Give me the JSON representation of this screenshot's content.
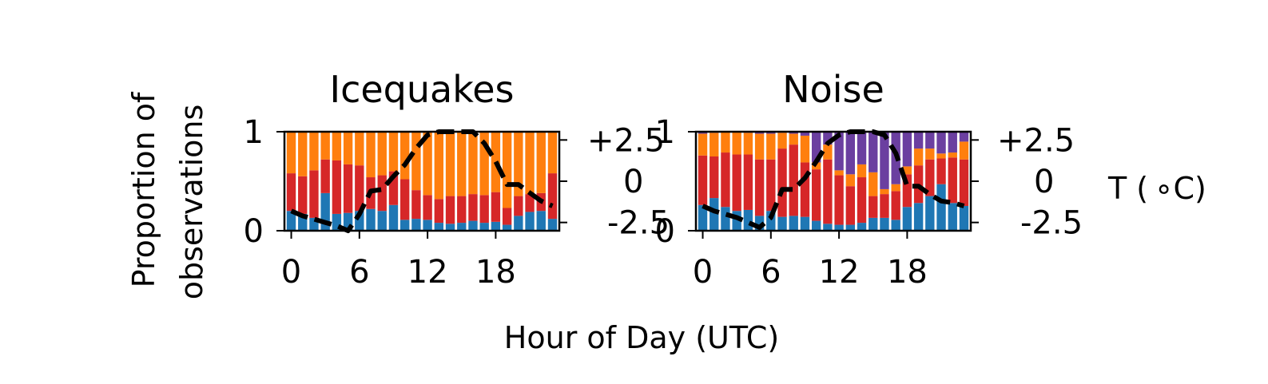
{
  "figure": {
    "ylabel_lines": [
      "Proportion of",
      "observations"
    ],
    "xlabel": "Hour of Day (UTC)",
    "temp_label": "T ($^\\circ$C)",
    "temp_label_display": "T ( ∘C)"
  },
  "colors": {
    "blue": "#1f77b4",
    "red": "#d62728",
    "orange": "#ff7f0e",
    "purple": "#6b3fa0",
    "temperature": "#000000"
  },
  "chart_data": [
    {
      "type": "bar",
      "stacked": true,
      "title": "Icequakes",
      "x": [
        0,
        1,
        2,
        3,
        4,
        5,
        6,
        7,
        8,
        9,
        10,
        11,
        12,
        13,
        14,
        15,
        16,
        17,
        18,
        19,
        20,
        21,
        22,
        23
      ],
      "x_ticks": [
        "0",
        "6",
        "12",
        "18"
      ],
      "y_ticks": [
        "0",
        "1"
      ],
      "ylim": [
        0,
        1
      ],
      "series": [
        {
          "color_key": "blue",
          "values": [
            0.2,
            0.17,
            0.13,
            0.38,
            0.17,
            0.18,
            0.2,
            0.22,
            0.2,
            0.26,
            0.11,
            0.12,
            0.11,
            0.08,
            0.07,
            0.08,
            0.1,
            0.08,
            0.09,
            0.06,
            0.15,
            0.19,
            0.2,
            0.12
          ]
        },
        {
          "color_key": "red",
          "values": [
            0.38,
            0.38,
            0.48,
            0.34,
            0.54,
            0.49,
            0.46,
            0.32,
            0.36,
            0.34,
            0.41,
            0.29,
            0.25,
            0.24,
            0.28,
            0.27,
            0.27,
            0.28,
            0.3,
            0.17,
            0.2,
            0.18,
            0.18,
            0.46
          ]
        },
        {
          "color_key": "orange",
          "values": [
            0.42,
            0.45,
            0.39,
            0.28,
            0.29,
            0.33,
            0.34,
            0.46,
            0.44,
            0.4,
            0.48,
            0.59,
            0.64,
            0.68,
            0.65,
            0.65,
            0.63,
            0.64,
            0.61,
            0.77,
            0.65,
            0.63,
            0.62,
            0.42
          ]
        }
      ],
      "temperature": {
        "ylim": [
          -3.0,
          3.0
        ],
        "y_ticks": [
          "+2.5",
          "0",
          "-2.5"
        ],
        "y_tick_values": [
          2.5,
          0,
          -2.5
        ],
        "x": [
          0,
          1,
          2,
          3,
          4,
          5,
          6,
          7,
          8,
          9,
          10,
          11,
          12,
          13,
          14,
          15,
          16,
          17,
          18,
          19,
          20,
          21,
          22,
          23
        ],
        "values": [
          -1.8,
          -2.1,
          -2.3,
          -2.5,
          -2.7,
          -3.0,
          -2.0,
          -0.6,
          -0.5,
          0.3,
          1.0,
          2.0,
          2.8,
          3.0,
          3.0,
          3.0,
          3.0,
          2.3,
          1.2,
          -0.2,
          -0.2,
          -0.7,
          -1.2,
          -1.5
        ],
        "linestyle": "dashed"
      }
    },
    {
      "type": "bar",
      "stacked": true,
      "title": "Noise",
      "x": [
        0,
        1,
        2,
        3,
        4,
        5,
        6,
        7,
        8,
        9,
        10,
        11,
        12,
        13,
        14,
        15,
        16,
        17,
        18,
        19,
        20,
        21,
        22,
        23
      ],
      "x_ticks": [
        "0",
        "6",
        "12",
        "18"
      ],
      "y_ticks": [
        "0",
        "1"
      ],
      "ylim": [
        0,
        1
      ],
      "series": [
        {
          "color_key": "blue",
          "values": [
            0.26,
            0.33,
            0.24,
            0.2,
            0.21,
            0.15,
            0.2,
            0.14,
            0.15,
            0.14,
            0.1,
            0.07,
            0.06,
            0.06,
            0.08,
            0.13,
            0.13,
            0.11,
            0.24,
            0.28,
            0.35,
            0.47,
            0.28,
            0.25
          ]
        },
        {
          "color_key": "red",
          "values": [
            0.5,
            0.42,
            0.55,
            0.57,
            0.56,
            0.57,
            0.52,
            0.69,
            0.72,
            0.55,
            0.52,
            0.65,
            0.5,
            0.39,
            0.46,
            0.22,
            0.24,
            0.29,
            0.33,
            0.38,
            0.37,
            0.26,
            0.46,
            0.47
          ]
        },
        {
          "color_key": "orange",
          "values": [
            0.22,
            0.24,
            0.21,
            0.23,
            0.22,
            0.26,
            0.26,
            0.16,
            0.11,
            0.27,
            0.07,
            0.15,
            0.05,
            0.12,
            0.13,
            0.24,
            0.05,
            0.07,
            0.08,
            0.17,
            0.11,
            0.05,
            0.05,
            0.18
          ]
        },
        {
          "color_key": "purple",
          "values": [
            0.02,
            0.01,
            0.0,
            0.0,
            0.01,
            0.02,
            0.02,
            0.01,
            0.02,
            0.04,
            0.31,
            0.13,
            0.39,
            0.43,
            0.33,
            0.41,
            0.58,
            0.53,
            0.35,
            0.17,
            0.17,
            0.22,
            0.21,
            0.1
          ]
        }
      ],
      "temperature": {
        "ylim": [
          -3.0,
          3.0
        ],
        "y_ticks": [
          "+2.5",
          "0",
          "-2.5"
        ],
        "y_tick_values": [
          2.5,
          0,
          -2.5
        ],
        "x": [
          0,
          1,
          2,
          3,
          4,
          5,
          6,
          7,
          8,
          9,
          10,
          11,
          12,
          13,
          14,
          15,
          16,
          17,
          18,
          19,
          20,
          21,
          22,
          23
        ],
        "values": [
          -1.5,
          -1.8,
          -2.0,
          -2.2,
          -2.5,
          -2.8,
          -2.2,
          -0.5,
          -0.5,
          0.2,
          1.2,
          2.3,
          2.8,
          3.0,
          3.0,
          3.0,
          2.8,
          1.7,
          -0.3,
          -0.3,
          -0.8,
          -1.2,
          -1.3,
          -1.5
        ],
        "linestyle": "dashed"
      }
    }
  ]
}
